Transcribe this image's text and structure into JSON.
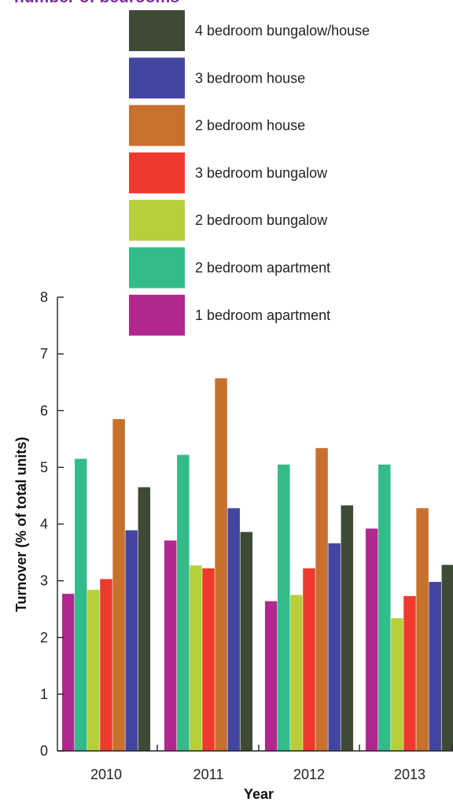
{
  "title": "number of bedrooms",
  "title_color": "#7b2d9a",
  "chart_data": {
    "type": "bar",
    "title": "number of bedrooms",
    "xlabel": "Year",
    "ylabel": "Turnover (% of total units)",
    "categories": [
      "2010",
      "2011",
      "2012",
      "2013"
    ],
    "ylim": [
      0,
      8
    ],
    "yticks": [
      "0",
      "1",
      "2",
      "3",
      "4",
      "5",
      "6",
      "7",
      "8"
    ],
    "grid": false,
    "legend_position": "top-right",
    "series": [
      {
        "name": "1 bedroom apartment",
        "color": "#b0288e",
        "values": [
          2.77,
          3.71,
          2.64,
          3.92
        ]
      },
      {
        "name": "2 bedroom apartment",
        "color": "#33bb8a",
        "values": [
          5.15,
          5.22,
          5.05,
          5.05
        ]
      },
      {
        "name": "2 bedroom bungalow",
        "color": "#b8cf3b",
        "values": [
          2.84,
          3.27,
          2.75,
          2.34
        ]
      },
      {
        "name": "3 bedroom bungalow",
        "color": "#ee3a2c",
        "values": [
          3.03,
          3.22,
          3.22,
          2.73
        ]
      },
      {
        "name": "2 bedroom house",
        "color": "#c8702e",
        "values": [
          5.85,
          6.57,
          5.34,
          4.28
        ]
      },
      {
        "name": "3 bedroom house",
        "color": "#4346a0",
        "values": [
          3.89,
          4.28,
          3.66,
          2.98
        ]
      },
      {
        "name": "4 bedroom bungalow/house",
        "color": "#3e4a35",
        "values": [
          4.65,
          3.86,
          4.33,
          3.28
        ]
      }
    ]
  }
}
